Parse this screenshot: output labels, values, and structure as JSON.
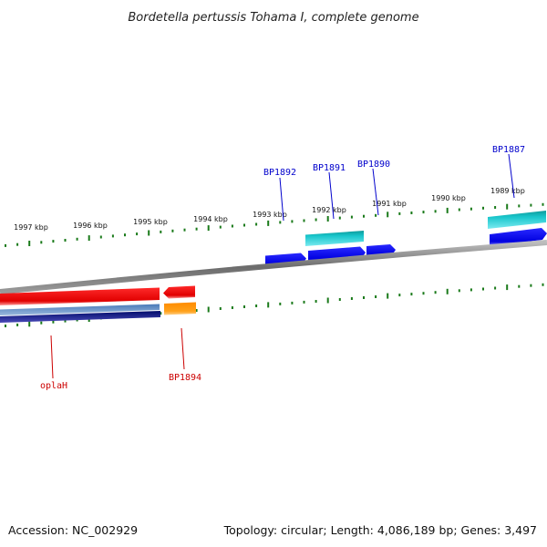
{
  "title": "Bordetella pertussis Tohama I, complete genome",
  "footer": {
    "accession": "Accession: NC_002929",
    "summary": "Topology: circular; Length: 4,086,189 bp; Genes: 3,497"
  },
  "kbp_labels": [
    "1997 kbp",
    "1996 kbp",
    "1995 kbp",
    "1994 kbp",
    "1993 kbp",
    "1992 kbp",
    "1991 kbp",
    "1990 kbp",
    "1989 kbp"
  ],
  "gene_labels": {
    "bp1892": "BP1892",
    "bp1891": "BP1891",
    "bp1890": "BP1890",
    "bp1887": "BP1887",
    "oplah": "oplaH",
    "bp1894": "BP1894"
  },
  "colors": {
    "forward_cds": "#0000ee",
    "reverse_cds": "#ee0000",
    "forward_feature": "#19c6cc",
    "reverse_feature": "#ff9900",
    "blue_strip": "#4477bb",
    "navy_strip": "#000f7a",
    "tick": "#1a7a1a",
    "backbone": "#888888",
    "forward_label": "#0000cc",
    "reverse_label": "#cc0000"
  }
}
